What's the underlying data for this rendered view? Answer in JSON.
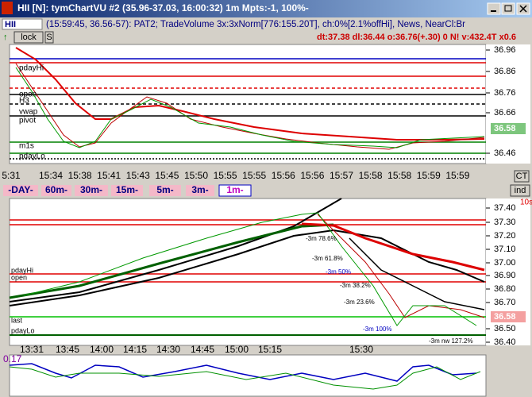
{
  "header": {
    "title": "HII [N]: tymChartVU #2 (35.96-37.03, 16:00:32) 1m Mpts:-1, 100%-"
  },
  "toolbar": {
    "symbol": "HII",
    "status": "(15:59:45, 36.56-57): PAT2; TradeVolume 3x:3xNorm[776:155.20T], ch:0%[2.1%offHi], News, NearCl:Br"
  },
  "toolbar2": {
    "lock": "lock",
    "s": "S",
    "stats": "dt:37.38  dl:36.44  o:36.76(+.30)  0  N!  v:432.4T  x0.6"
  },
  "top_chart": {
    "price_labels": [
      "36.96",
      "36.86",
      "36.76",
      "36.66",
      "36.46"
    ],
    "last": "36.58",
    "level_labels": [
      "pdayHi",
      "open",
      "H3",
      "vwap",
      "pivot",
      "m1s",
      "pdayLo"
    ],
    "time_labels": [
      "5:31",
      "15:34",
      "15:38",
      "15:41",
      "15:43",
      "15:45",
      "15:50",
      "15:55",
      "15:55",
      "15:56",
      "15:56",
      "15:57",
      "15:58",
      "15:58",
      "15:59",
      "15:59"
    ]
  },
  "tabs": [
    "-DAY-",
    "60m-",
    "30m-",
    "15m-",
    "5m-",
    "3m-",
    "1m-"
  ],
  "buttons": {
    "ct": "CT",
    "ind": "ind"
  },
  "bottom_chart": {
    "interval": "10s",
    "price_labels": [
      "37.40",
      "37.30",
      "37.20",
      "37.10",
      "37.00",
      "36.90",
      "36.80",
      "36.70",
      "36.50",
      "36.40"
    ],
    "last": "36.58",
    "level_labels": [
      "pdayHi",
      "open",
      "last",
      "pdayLo"
    ],
    "fib_labels": [
      "-3m 78.6%",
      "-3m 61.8%",
      "-3m 50%",
      "-3m 38.2%",
      "-3m 23.6%",
      "-3m 100%",
      "-3m nw 127.2%"
    ],
    "time_labels": [
      "13:31",
      "13:45",
      "14:00",
      "14:15",
      "14:30",
      "14:45",
      "15:00",
      "15:15",
      "15:30"
    ]
  },
  "indicator": {
    "value": "0.17"
  }
}
